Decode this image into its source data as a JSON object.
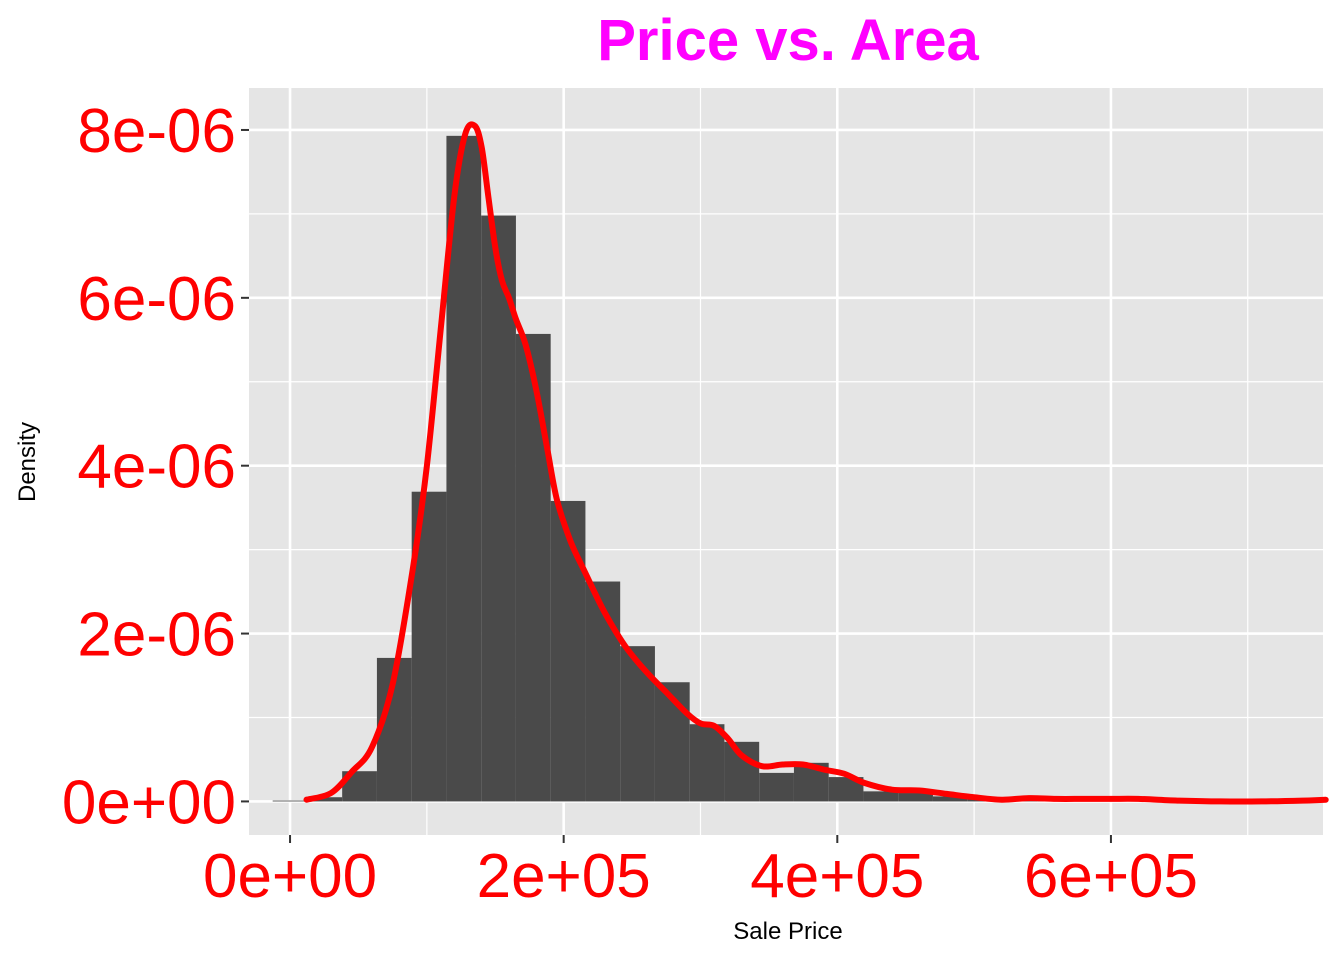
{
  "chart_data": {
    "type": "histogram+density",
    "title": "Price vs. Area",
    "xlabel": "Sale Price",
    "ylabel": "Density",
    "xlim": [
      -30000,
      755000
    ],
    "ylim": [
      -4e-07,
      8.5e-06
    ],
    "x_ticks": [
      {
        "value": 0,
        "label": "0e+00"
      },
      {
        "value": 200000,
        "label": "2e+05"
      },
      {
        "value": 400000,
        "label": "4e+05"
      },
      {
        "value": 600000,
        "label": "6e+05"
      }
    ],
    "y_ticks": [
      {
        "value": 0,
        "label": "0e+00"
      },
      {
        "value": 2e-06,
        "label": "2e-06"
      },
      {
        "value": 4e-06,
        "label": "4e-06"
      },
      {
        "value": 6e-06,
        "label": "6e-06"
      },
      {
        "value": 8e-06,
        "label": "8e-06"
      }
    ],
    "grid": true,
    "histogram": {
      "bin_starts": [
        -12700,
        12700,
        38100,
        63500,
        88900,
        114300,
        139700,
        165100,
        190500,
        215900,
        241300,
        266700,
        292100,
        317500,
        342900,
        368300,
        393700,
        419100,
        444500,
        469900,
        495300,
        520700,
        546100,
        571500,
        596900,
        622300,
        647700,
        673100,
        698500,
        723900
      ],
      "bin_width": 25400,
      "densities": [
        1e-08,
        5e-08,
        3.6e-07,
        1.71e-06,
        3.69e-06,
        7.93e-06,
        6.98e-06,
        5.57e-06,
        3.58e-06,
        2.62e-06,
        1.85e-06,
        1.42e-06,
        9.2e-07,
        7.1e-07,
        3.4e-07,
        4.6e-07,
        2.9e-07,
        1.2e-07,
        1e-07,
        6e-08,
        3e-08,
        1e-08,
        2e-08,
        1e-08,
        2e-08,
        1e-08,
        0.0,
        0.0,
        0.0,
        1e-08
      ]
    },
    "density_curve": {
      "x": [
        12000,
        30000,
        45000,
        60000,
        75000,
        90000,
        100000,
        110000,
        120000,
        128000,
        135000,
        140000,
        145000,
        150000,
        155000,
        160000,
        165000,
        172000,
        180000,
        188000,
        195000,
        205000,
        215000,
        230000,
        245000,
        260000,
        275000,
        290000,
        300000,
        310000,
        320000,
        330000,
        345000,
        360000,
        375000,
        390000,
        405000,
        420000,
        440000,
        460000,
        480000,
        500000,
        520000,
        540000,
        560000,
        580000,
        600000,
        620000,
        650000,
        680000,
        710000,
        740000,
        757000
      ],
      "y": [
        2e-08,
        1e-07,
        3.5e-07,
        6.5e-07,
        1.4e-06,
        2.8e-06,
        4e-06,
        5.6e-06,
        7.2e-06,
        7.95e-06,
        8.05e-06,
        7.8e-06,
        7.2e-06,
        6.6e-06,
        6.2e-06,
        6e-06,
        5.75e-06,
        5.45e-06,
        4.9e-06,
        4.2e-06,
        3.6e-06,
        3.1e-06,
        2.75e-06,
        2.25e-06,
        1.85e-06,
        1.55e-06,
        1.3e-06,
        1.05e-06,
        9.3e-07,
        9e-07,
        7.5e-07,
        5.5e-07,
        4.2e-07,
        4.4e-07,
        4.4e-07,
        3.8e-07,
        3.3e-07,
        2.2e-07,
        1.4e-07,
        1.3e-07,
        9e-08,
        5e-08,
        2e-08,
        4e-08,
        3e-08,
        3e-08,
        3e-08,
        3e-08,
        1e-08,
        0.0,
        0.0,
        1e-08,
        2e-08
      ]
    },
    "colors": {
      "panel_background": "#E5E5E5",
      "grid_major": "#FFFFFF",
      "bar_fill": "#4A4A4A",
      "density_line": "#FF0000",
      "tick_label": "#FF0000",
      "title": "#FF00FF",
      "axis_title": "#000000",
      "tick_mark": "#333333"
    }
  }
}
